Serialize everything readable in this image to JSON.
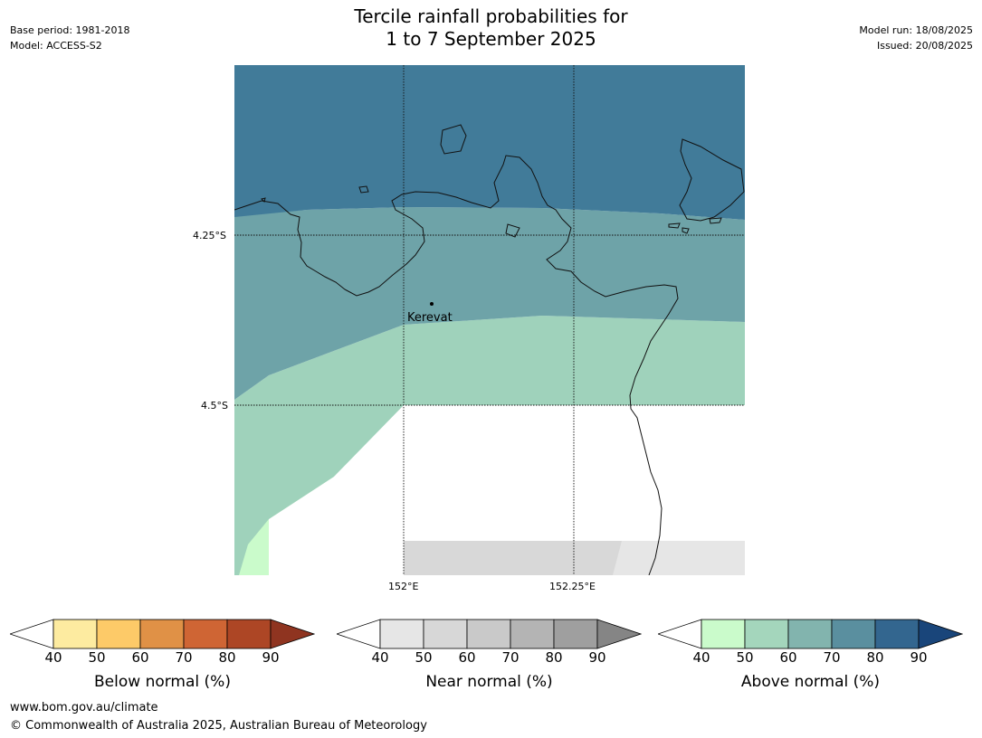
{
  "header": {
    "base_period": "Base period: 1981-2018",
    "model": "Model: ACCESS-S2",
    "model_run": "Model run: 18/08/2025",
    "issued": "Issued: 20/08/2025",
    "title_line1": "Tercile rainfall probabilities for",
    "title_line2": "1 to 7 September 2025"
  },
  "map": {
    "place_label": "Kerevat",
    "lat_labels": [
      "4.25°S",
      "4.5°S"
    ],
    "lon_labels": [
      "152°E",
      "152.25°E"
    ],
    "region_colors": {
      "above_80_90": "#417b99",
      "above_70_80": "#6ea3a8",
      "above_50_60": "#9fd2bb",
      "above_40_50": "#cafbcb",
      "near_50_60": "#d8d8d8",
      "near_40_50": "#e6e6e6",
      "no_dominant": "#ffffff"
    }
  },
  "colorbars": [
    {
      "label": "Below normal (%)",
      "ticks": [
        "40",
        "50",
        "60",
        "70",
        "80",
        "90"
      ],
      "colors": [
        "#fdeba0",
        "#fdca68",
        "#e09146",
        "#cf6534",
        "#ad4625"
      ],
      "arrow_color": "#8f3420"
    },
    {
      "label": "Near normal (%)",
      "ticks": [
        "40",
        "50",
        "60",
        "70",
        "80",
        "90"
      ],
      "colors": [
        "#e6e6e6",
        "#d7d7d7",
        "#c9c9c9",
        "#b4b4b4",
        "#9f9f9f"
      ],
      "arrow_color": "#858585"
    },
    {
      "label": "Above normal (%)",
      "ticks": [
        "40",
        "50",
        "60",
        "70",
        "80",
        "90"
      ],
      "colors": [
        "#cafbcb",
        "#a4d6bc",
        "#82b4ae",
        "#5a8f9f",
        "#33668f"
      ],
      "arrow_color": "#19457a"
    }
  ],
  "footer": {
    "website": "www.bom.gov.au/climate",
    "copyright": "© Commonwealth of Australia 2025, Australian Bureau of Meteorology"
  }
}
